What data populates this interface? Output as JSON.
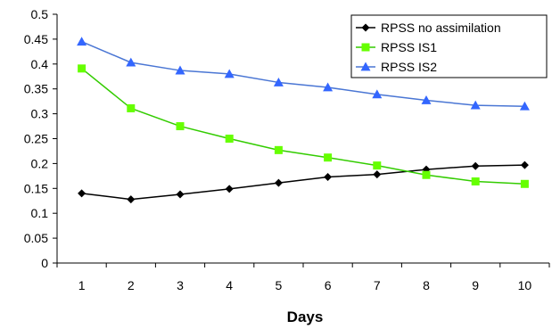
{
  "chart_data": {
    "type": "line",
    "title": "",
    "xlabel": "Days",
    "ylabel": "",
    "categories": [
      "1",
      "2",
      "3",
      "4",
      "5",
      "6",
      "7",
      "8",
      "9",
      "10"
    ],
    "ylim": [
      0,
      0.5
    ],
    "y_ticks": [
      "0",
      "0.05",
      "0.1",
      "0.15",
      "0.2",
      "0.25",
      "0.3",
      "0.35",
      "0.4",
      "0.45",
      "0.5"
    ],
    "grid": false,
    "legend_position": "top-right",
    "series": [
      {
        "name": "RPSS no assimilation",
        "color": "#000000",
        "marker": "diamond",
        "values": [
          0.14,
          0.128,
          0.138,
          0.149,
          0.161,
          0.173,
          0.178,
          0.188,
          0.195,
          0.197
        ]
      },
      {
        "name": "RPSS IS1",
        "color": "#33cc00",
        "marker_color": "#66ff00",
        "marker": "square",
        "values": [
          0.391,
          0.311,
          0.275,
          0.25,
          0.227,
          0.212,
          0.196,
          0.177,
          0.164,
          0.159
        ]
      },
      {
        "name": "RPSS IS2",
        "color": "#4a76d4",
        "marker_color": "#3366ff",
        "marker": "triangle",
        "values": [
          0.445,
          0.403,
          0.387,
          0.38,
          0.363,
          0.353,
          0.339,
          0.327,
          0.317,
          0.315
        ]
      }
    ]
  }
}
